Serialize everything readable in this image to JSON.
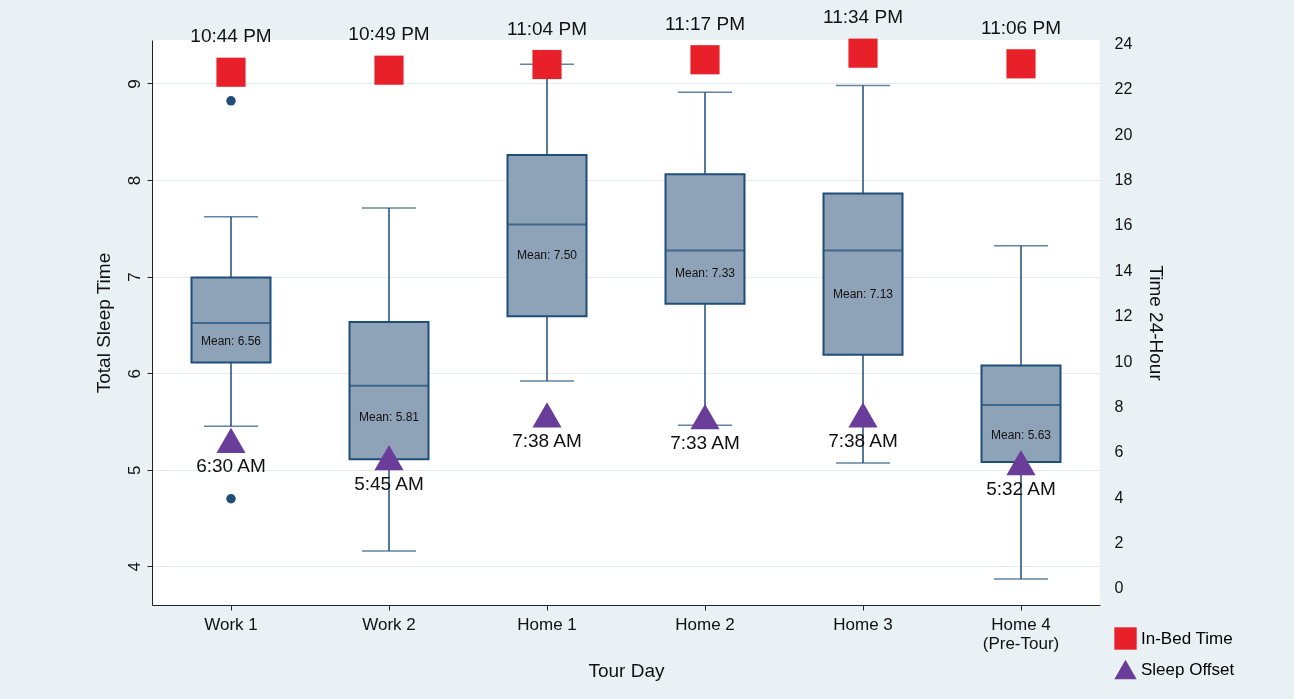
{
  "chart_data": {
    "type": "box",
    "xlabel": "Tour Day",
    "ylabel": "Total Sleep Time",
    "y2label": "Time 24-Hour",
    "categories": [
      "Work 1",
      "Work 2",
      "Home 1",
      "Home 2",
      "Home 3",
      "Home 4\n(Pre-Tour)"
    ],
    "ylim": [
      3.6,
      9.45
    ],
    "yticks": [
      4,
      5,
      6,
      7,
      8,
      9
    ],
    "y2lim": [
      -0.75,
      24.15
    ],
    "y2ticks": [
      0,
      2,
      4,
      6,
      8,
      10,
      12,
      14,
      16,
      18,
      20,
      22,
      24
    ],
    "grid": "y",
    "legend": "bottom right",
    "series": [
      {
        "type": "box",
        "color": "#8ea3b8",
        "boxes": [
          {
            "low": 5.45,
            "q1": 6.11,
            "median": 6.52,
            "q3": 6.99,
            "high": 7.62,
            "outliers": [
              8.82,
              4.7
            ]
          },
          {
            "low": 4.16,
            "q1": 5.11,
            "median": 5.87,
            "q3": 6.53,
            "high": 7.71
          },
          {
            "low": 5.92,
            "q1": 6.59,
            "median": 7.54,
            "q3": 8.26,
            "high": 9.2
          },
          {
            "low": 5.46,
            "q1": 6.72,
            "median": 7.27,
            "q3": 8.06,
            "high": 8.91
          },
          {
            "low": 5.07,
            "q1": 6.19,
            "median": 7.27,
            "q3": 7.86,
            "high": 8.98
          },
          {
            "low": 3.87,
            "q1": 5.08,
            "median": 5.67,
            "q3": 6.08,
            "high": 7.32
          }
        ]
      },
      {
        "type": "scatter",
        "name": "In-Bed Time",
        "color": "#e8202a",
        "marker": "square",
        "axis": "y2",
        "values": [
          22.73,
          22.82,
          23.07,
          23.28,
          23.57,
          23.1
        ],
        "value_labels": [
          "10:44 PM",
          "10:49 PM",
          "11:04 PM",
          "11:17 PM",
          "11:34 PM",
          "11:06 PM"
        ]
      },
      {
        "type": "scatter",
        "name": "Sleep Offset",
        "color": "#6a3d9a",
        "marker": "triangle",
        "axis": "y2",
        "values": [
          6.5,
          5.75,
          7.63,
          7.55,
          7.63,
          5.53
        ],
        "value_labels": [
          "6:30 AM",
          "5:45 AM",
          "7:38 AM",
          "7:33 AM",
          "7:38 AM",
          "5:32 AM"
        ]
      }
    ],
    "annotations": [
      {
        "text": "Mean: 6.56",
        "x": "Work 1",
        "y": 6.33
      },
      {
        "text": "Mean: 5.81",
        "x": "Work 2",
        "y": 5.55
      },
      {
        "text": "Mean: 7.50",
        "x": "Home 1",
        "y": 7.22
      },
      {
        "text": "Mean: 7.33",
        "x": "Home 2",
        "y": 7.04
      },
      {
        "text": "Mean: 7.13",
        "x": "Home 3",
        "y": 6.82
      },
      {
        "text": "Mean: 5.63",
        "x": "Home 4\n(Pre-Tour)",
        "y": 5.36
      }
    ]
  }
}
